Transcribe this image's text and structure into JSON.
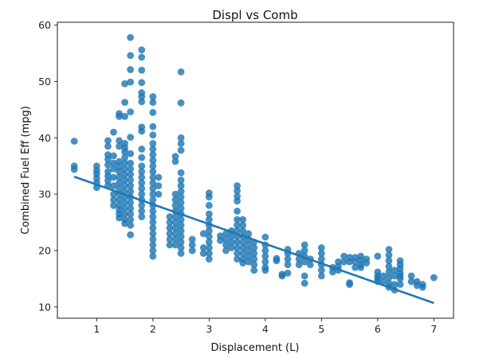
{
  "chart_data": {
    "type": "scatter",
    "title": "Displ vs Comb",
    "xlabel": "Displacement (L)",
    "ylabel": "Combined Fuel Eff (mpg)",
    "xlim": [
      0.3,
      7.35
    ],
    "ylim": [
      8.0,
      60.5
    ],
    "xticks": [
      1,
      2,
      3,
      4,
      5,
      6,
      7
    ],
    "yticks": [
      10,
      20,
      30,
      40,
      50,
      60
    ],
    "grid": false,
    "point_color": "#1f77b4",
    "regression_line": {
      "x": [
        0.6,
        7.0
      ],
      "y": [
        33.1,
        10.7
      ],
      "color": "#1f77b4"
    },
    "columns": [
      {
        "x": 0.6,
        "ys": [
          39.4,
          35.0,
          34.4
        ]
      },
      {
        "x": 1.0,
        "ys": [
          35.0,
          34.2,
          33.6,
          32.8,
          32.0,
          31.2
        ]
      },
      {
        "x": 1.2,
        "ys": [
          39.5,
          38.5,
          37.0,
          36.2,
          35.2,
          34.0,
          33.2,
          32.4,
          31.5
        ]
      },
      {
        "x": 1.3,
        "ys": [
          41.0,
          36.8,
          35.5,
          34.5,
          33.0,
          31.5,
          30.0,
          29.0,
          28.0
        ]
      },
      {
        "x": 1.4,
        "ys": [
          44.3,
          43.8,
          39.5,
          38.5,
          35.8,
          34.9,
          34.0,
          33.0,
          32.0,
          31.0,
          30.0,
          29.0,
          28.0,
          27.2,
          26.5,
          25.8
        ]
      },
      {
        "x": 1.5,
        "ys": [
          49.6,
          46.3,
          43.8,
          39.0,
          38.2,
          37.5,
          36.5,
          35.5,
          34.5,
          33.5,
          32.5,
          31.5,
          30.5,
          29.5,
          28.5,
          27.5,
          26.5,
          25.5,
          24.8
        ]
      },
      {
        "x": 1.6,
        "ys": [
          57.8,
          54.6,
          52.1,
          49.9,
          44.6,
          40.1,
          37.2,
          35.5,
          34.5,
          33.5,
          32.5,
          31.5,
          30.5,
          29.5,
          28.5,
          27.5,
          26.5,
          25.5,
          24.5,
          22.8
        ]
      },
      {
        "x": 1.8,
        "ys": [
          55.6,
          54.3,
          52.0,
          49.8,
          48.0,
          47.3,
          46.4,
          41.9,
          41.2,
          38.0,
          36.5,
          35.0,
          34.0,
          33.0,
          32.0,
          31.0,
          30.0,
          29.0,
          28.0,
          27.0,
          26.0
        ]
      },
      {
        "x": 2.0,
        "ys": [
          47.3,
          46.3,
          44.5,
          42.0,
          40.5,
          39.0,
          38.0,
          37.0,
          36.0,
          35.0,
          34.0,
          33.0,
          32.0,
          31.0,
          30.0,
          29.0,
          28.0,
          27.0,
          26.0,
          25.0,
          24.0,
          23.0,
          22.0,
          21.0,
          20.0,
          19.0
        ]
      },
      {
        "x": 2.1,
        "ys": [
          33.0,
          31.5,
          30.0
        ]
      },
      {
        "x": 2.3,
        "ys": [
          26.0,
          25.0,
          24.0,
          23.0,
          22.0,
          21.0
        ]
      },
      {
        "x": 2.4,
        "ys": [
          36.7,
          35.8,
          30.0,
          29.0,
          28.0,
          27.0,
          26.0,
          25.0,
          24.0,
          23.0,
          22.0,
          21.0
        ]
      },
      {
        "x": 2.5,
        "ys": [
          51.7,
          46.2,
          40.0,
          39.0,
          37.8,
          33.8,
          32.5,
          31.5,
          30.5,
          29.5,
          28.5,
          27.5,
          26.5,
          25.5,
          24.5,
          23.5,
          22.5,
          21.5,
          20.5,
          19.5
        ]
      },
      {
        "x": 2.7,
        "ys": [
          22.0,
          21.0,
          20.0
        ]
      },
      {
        "x": 2.9,
        "ys": [
          23.0,
          20.5,
          19.5
        ]
      },
      {
        "x": 3.0,
        "ys": [
          30.2,
          29.5,
          28.0,
          26.5,
          25.5,
          24.5,
          23.5,
          22.5,
          21.5,
          20.5,
          19.5,
          18.5
        ]
      },
      {
        "x": 3.2,
        "ys": [
          22.6,
          21.8
        ]
      },
      {
        "x": 3.3,
        "ys": [
          23.0,
          22.0,
          21.0,
          20.0
        ]
      },
      {
        "x": 3.4,
        "ys": [
          23.5,
          22.5,
          21.5,
          20.5
        ]
      },
      {
        "x": 3.5,
        "ys": [
          31.5,
          30.6,
          29.6,
          28.8,
          27.0,
          25.5,
          24.5,
          23.5,
          22.5,
          21.5,
          20.5,
          19.5,
          18.5
        ]
      },
      {
        "x": 3.6,
        "ys": [
          25.5,
          24.5,
          23.5,
          22.5,
          21.5,
          20.5,
          19.5,
          18.5,
          17.8
        ]
      },
      {
        "x": 3.7,
        "ys": [
          23.0,
          22.0,
          21.0,
          20.0,
          19.0,
          18.0
        ]
      },
      {
        "x": 3.8,
        "ys": [
          21.5,
          20.5,
          19.5,
          18.5,
          17.5,
          16.5
        ]
      },
      {
        "x": 4.0,
        "ys": [
          22.4,
          21.0,
          20.0,
          19.0,
          18.0,
          17.0,
          16.5
        ]
      },
      {
        "x": 4.2,
        "ys": [
          18.6,
          18.2
        ]
      },
      {
        "x": 4.3,
        "ys": [
          15.8,
          15.5
        ]
      },
      {
        "x": 4.4,
        "ys": [
          20.2,
          19.5,
          18.5,
          17.5,
          16.0
        ]
      },
      {
        "x": 4.6,
        "ys": [
          19.5,
          18.5,
          17.5
        ]
      },
      {
        "x": 4.7,
        "ys": [
          21.0,
          20.0,
          19.0,
          18.0,
          15.5,
          14.2
        ]
      },
      {
        "x": 4.8,
        "ys": [
          18.5,
          17.5
        ]
      },
      {
        "x": 5.0,
        "ys": [
          20.5,
          19.5,
          18.5,
          17.5,
          16.5,
          15.5
        ]
      },
      {
        "x": 5.2,
        "ys": [
          17.0,
          16.2
        ]
      },
      {
        "x": 5.3,
        "ys": [
          18.0,
          17.2,
          16.5
        ]
      },
      {
        "x": 5.4,
        "ys": [
          19.0,
          18.0
        ]
      },
      {
        "x": 5.5,
        "ys": [
          18.8,
          18.0,
          14.3,
          14.0
        ]
      },
      {
        "x": 5.6,
        "ys": [
          18.8,
          18.0,
          17.0
        ]
      },
      {
        "x": 5.7,
        "ys": [
          19.0,
          18.3,
          17.5,
          17.0
        ]
      },
      {
        "x": 5.8,
        "ys": [
          18.5,
          17.8
        ]
      },
      {
        "x": 6.0,
        "ys": [
          19.0,
          16.2,
          15.5,
          15.0,
          14.5
        ]
      },
      {
        "x": 6.1,
        "ys": [
          15.5,
          14.5
        ]
      },
      {
        "x": 6.2,
        "ys": [
          20.2,
          19.2,
          18.2,
          17.2,
          16.2,
          15.2,
          14.2,
          13.5
        ]
      },
      {
        "x": 6.3,
        "ys": [
          16.5,
          15.5,
          14.0,
          13.0
        ]
      },
      {
        "x": 6.4,
        "ys": [
          18.2,
          17.5,
          16.8,
          16.0,
          15.5,
          15.0,
          14.0
        ]
      },
      {
        "x": 6.6,
        "ys": [
          15.5,
          14.5
        ]
      },
      {
        "x": 6.7,
        "ys": [
          14.5,
          13.8
        ]
      },
      {
        "x": 6.8,
        "ys": [
          14.0,
          13.5
        ]
      },
      {
        "x": 7.0,
        "ys": [
          15.2
        ]
      }
    ]
  }
}
